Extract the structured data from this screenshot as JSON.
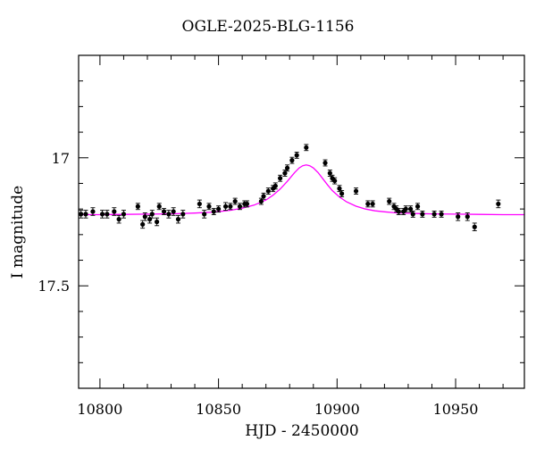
{
  "chart_data": {
    "type": "scatter",
    "title": "OGLE-2025-BLG-1156",
    "xlabel": "HJD - 2450000",
    "ylabel": "I magnitude",
    "xlim": [
      10791,
      10979
    ],
    "ylim": [
      17.9,
      16.6
    ],
    "y_inverted": true,
    "xticks": [
      10800,
      10850,
      10900,
      10950
    ],
    "xtick_labels": [
      "10800",
      "10850",
      "10900",
      "10950"
    ],
    "yticks": [
      17,
      17.5
    ],
    "ytick_labels": [
      "17",
      "17.5"
    ],
    "grid": false,
    "colors": {
      "points": "#000000",
      "model": "#ff00ff",
      "axes": "#000000"
    },
    "series": [
      {
        "kind": "points_with_errorbars",
        "x": [
          10792,
          10794,
          10797,
          10801,
          10803,
          10806,
          10808,
          10810,
          10816,
          10818,
          10819,
          10821,
          10822,
          10824,
          10825,
          10827,
          10829,
          10831,
          10833,
          10835,
          10842,
          10844,
          10846,
          10848,
          10850,
          10853,
          10855,
          10857,
          10859,
          10861,
          10862,
          10868,
          10869,
          10871,
          10873,
          10874,
          10876,
          10878,
          10879,
          10881,
          10883,
          10887,
          10895,
          10897,
          10898,
          10899,
          10901,
          10902,
          10908,
          10913,
          10915,
          10922,
          10924,
          10925,
          10926,
          10928,
          10929,
          10931,
          10932,
          10934,
          10936,
          10941,
          10944,
          10951,
          10955,
          10958,
          10968
        ],
        "y": [
          17.22,
          17.22,
          17.21,
          17.22,
          17.22,
          17.21,
          17.24,
          17.22,
          17.19,
          17.26,
          17.23,
          17.24,
          17.22,
          17.25,
          17.19,
          17.21,
          17.22,
          17.21,
          17.24,
          17.22,
          17.18,
          17.22,
          17.19,
          17.21,
          17.2,
          17.19,
          17.19,
          17.17,
          17.19,
          17.18,
          17.18,
          17.17,
          17.15,
          17.13,
          17.12,
          17.11,
          17.08,
          17.06,
          17.04,
          17.01,
          16.99,
          16.96,
          17.02,
          17.06,
          17.08,
          17.09,
          17.12,
          17.14,
          17.13,
          17.18,
          17.18,
          17.17,
          17.19,
          17.2,
          17.21,
          17.21,
          17.2,
          17.2,
          17.22,
          17.19,
          17.22,
          17.22,
          17.22,
          17.23,
          17.23,
          17.27,
          17.18
        ],
        "yerr": [
          0.015,
          0.015,
          0.015,
          0.015,
          0.015,
          0.015,
          0.015,
          0.015,
          0.012,
          0.015,
          0.015,
          0.015,
          0.015,
          0.015,
          0.012,
          0.012,
          0.015,
          0.015,
          0.015,
          0.015,
          0.015,
          0.015,
          0.012,
          0.012,
          0.012,
          0.015,
          0.012,
          0.012,
          0.012,
          0.012,
          0.012,
          0.012,
          0.012,
          0.012,
          0.012,
          0.012,
          0.012,
          0.012,
          0.012,
          0.012,
          0.012,
          0.012,
          0.012,
          0.012,
          0.012,
          0.012,
          0.012,
          0.012,
          0.012,
          0.012,
          0.012,
          0.012,
          0.012,
          0.012,
          0.012,
          0.012,
          0.012,
          0.012,
          0.012,
          0.012,
          0.012,
          0.012,
          0.012,
          0.015,
          0.015,
          0.015,
          0.015
        ]
      },
      {
        "kind": "model_curve",
        "x": [
          10791,
          10800,
          10810,
          10820,
          10830,
          10840,
          10848,
          10855,
          10860,
          10865,
          10870,
          10873,
          10876,
          10879,
          10882,
          10884,
          10885.5,
          10887,
          10888.5,
          10890,
          10892,
          10894,
          10896,
          10898,
          10901,
          10904,
          10908,
          10912,
          10916,
          10920,
          10925,
          10930,
          10935,
          10940,
          10950,
          10960,
          10970,
          10979
        ],
        "y": [
          17.222,
          17.222,
          17.221,
          17.22,
          17.219,
          17.216,
          17.212,
          17.205,
          17.197,
          17.185,
          17.165,
          17.146,
          17.122,
          17.092,
          17.059,
          17.04,
          17.031,
          17.028,
          17.031,
          17.04,
          17.058,
          17.082,
          17.106,
          17.128,
          17.153,
          17.172,
          17.189,
          17.2,
          17.207,
          17.211,
          17.215,
          17.217,
          17.218,
          17.219,
          17.22,
          17.221,
          17.222,
          17.222
        ]
      }
    ]
  }
}
